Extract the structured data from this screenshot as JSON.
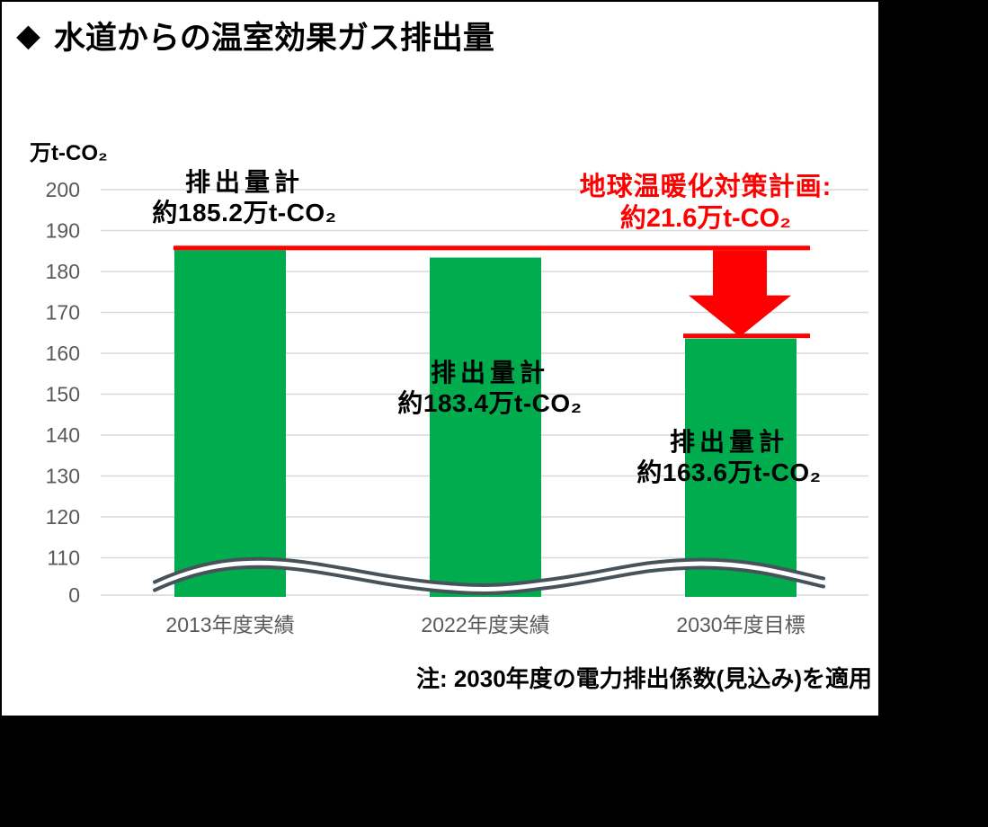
{
  "header": {
    "bullet": "◆",
    "title": "水道からの温室効果ガス排出量"
  },
  "chart_data": {
    "type": "bar",
    "title": "水道からの温室効果ガス排出量",
    "unit_label": "万t-CO₂",
    "y_axis": {
      "ticks": [
        200,
        190,
        180,
        170,
        160,
        150,
        140,
        130,
        120,
        110,
        0
      ],
      "axis_break_between": [
        0,
        110
      ],
      "tick_color": "#595959",
      "gridline_color": "#d9d9d9"
    },
    "categories": [
      "2013年度実績",
      "2022年度実績",
      "2030年度目標"
    ],
    "values": [
      185.2,
      183.4,
      163.6
    ],
    "bar_color": "#00AC4E",
    "bar_callouts": [
      {
        "title": "排出量計",
        "value_text": "約185.2万t-CO₂"
      },
      {
        "title": "排出量計",
        "value_text": "約183.4万t-CO₂"
      },
      {
        "title": "排出量計",
        "value_text": "約163.6万t-CO₂"
      }
    ],
    "reduction_annotation": {
      "line1": "地球温暖化対策計画:",
      "line2": "約21.6万t-CO₂",
      "from_value": 185.2,
      "to_value": 163.6,
      "reduction_amount": 21.6,
      "color": "#FF0000"
    },
    "axis_break_color": "#47535A",
    "note": "注: 2030年度の電力排出係数(見込み)を適用",
    "grid": "horizontal",
    "legend": "none"
  }
}
